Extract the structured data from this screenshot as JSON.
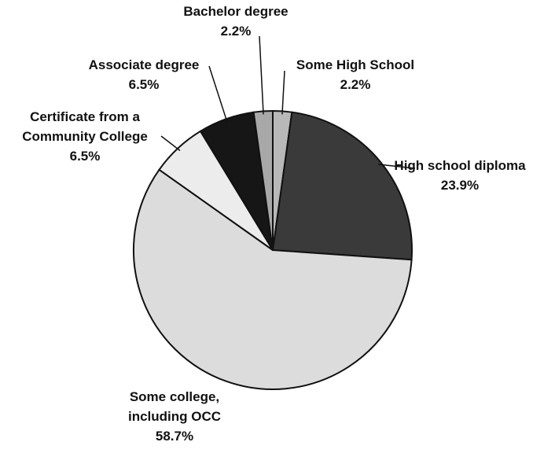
{
  "chart_data": {
    "type": "pie",
    "categories": [
      "Some High School",
      "High school diploma",
      "Some college,\nincluding OCC",
      "Certificate from a\nCommunity College",
      "Associate degree",
      "Bachelor degree"
    ],
    "values": [
      2.2,
      23.9,
      58.7,
      6.5,
      6.5,
      2.2
    ],
    "value_labels": [
      "2.2%",
      "23.9%",
      "58.7%",
      "6.5%",
      "6.5%",
      "2.2%"
    ],
    "colors": [
      "#b8b8b8",
      "#3a3a3a",
      "#dcdcdc",
      "#ececec",
      "#161616",
      "#a8a8a8"
    ]
  }
}
